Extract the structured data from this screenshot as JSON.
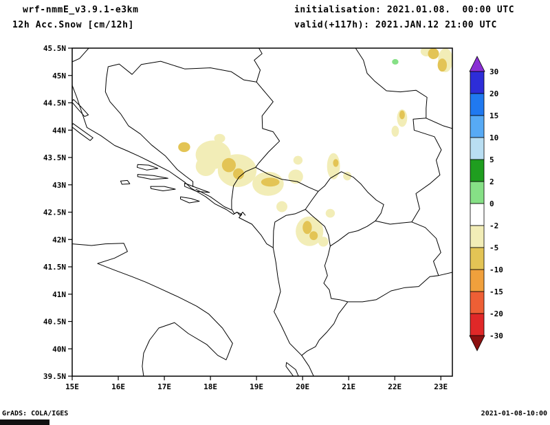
{
  "header": {
    "model": "wrf-nmmE_v3.9.1-e3km",
    "product": "12h Acc.Snow [cm/12h]",
    "init": "initialisation: 2021.01.08.  00:00 UTC",
    "valid": "valid(+117h): 2021.JAN.12 21:00 UTC"
  },
  "footer": {
    "left": "GrADS: COLA/IGES",
    "right": "2021-01-08-10:00"
  },
  "chart_data": {
    "type": "map",
    "variable": "12h Acc.Snow",
    "units": "cm/12h",
    "model": "wrf-nmmE_v3.9.1-e3km",
    "lon_range": [
      15,
      23.25
    ],
    "lat_range": [
      39.5,
      45.5
    ],
    "x_ticks": [
      {
        "v": 15,
        "label": "15E"
      },
      {
        "v": 16,
        "label": "16E"
      },
      {
        "v": 17,
        "label": "17E"
      },
      {
        "v": 18,
        "label": "18E"
      },
      {
        "v": 19,
        "label": "19E"
      },
      {
        "v": 20,
        "label": "20E"
      },
      {
        "v": 21,
        "label": "21E"
      },
      {
        "v": 22,
        "label": "22E"
      },
      {
        "v": 23,
        "label": "23E"
      }
    ],
    "y_ticks": [
      {
        "v": 45.5,
        "label": "45.5N"
      },
      {
        "v": 45,
        "label": "45N"
      },
      {
        "v": 44.5,
        "label": "44.5N"
      },
      {
        "v": 44,
        "label": "44N"
      },
      {
        "v": 43.5,
        "label": "43.5N"
      },
      {
        "v": 43,
        "label": "43N"
      },
      {
        "v": 42.5,
        "label": "42.5N"
      },
      {
        "v": 42,
        "label": "42N"
      },
      {
        "v": 41.5,
        "label": "41.5N"
      },
      {
        "v": 41,
        "label": "41N"
      },
      {
        "v": 40.5,
        "label": "40.5N"
      },
      {
        "v": 40,
        "label": "40N"
      },
      {
        "v": 39.5,
        "label": "39.5N"
      }
    ],
    "colorbar": {
      "labels": [
        "30",
        "20",
        "15",
        "10",
        "5",
        "2",
        "0",
        "-2",
        "-5",
        "-10",
        "-15",
        "-20",
        "-30"
      ],
      "segment_colors": [
        "#2d2dd8",
        "#2079f0",
        "#57aaf5",
        "#b9def2",
        "#1f9e1f",
        "#86e086",
        "#ffffff",
        "#f2edb7",
        "#e3c455",
        "#f0a03c",
        "#ee5f35",
        "#e02828"
      ],
      "arrow_top": "#8a2fd4",
      "arrow_bottom": "#8c1010"
    },
    "palette": {
      "pale": "#f2edb7",
      "gold": "#e3c455",
      "green": "#86e086"
    },
    "patches": [
      {
        "lon": 18.06,
        "lat": 43.55,
        "rx": 0.38,
        "ry": 0.26,
        "c": "pale"
      },
      {
        "lon": 18.58,
        "lat": 43.26,
        "rx": 0.42,
        "ry": 0.3,
        "c": "pale"
      },
      {
        "lon": 17.9,
        "lat": 43.34,
        "rx": 0.22,
        "ry": 0.18,
        "c": "pale"
      },
      {
        "lon": 19.25,
        "lat": 43.02,
        "rx": 0.34,
        "ry": 0.22,
        "c": "pale"
      },
      {
        "lon": 19.85,
        "lat": 43.15,
        "rx": 0.16,
        "ry": 0.13,
        "c": "pale"
      },
      {
        "lon": 19.9,
        "lat": 43.45,
        "rx": 0.1,
        "ry": 0.08,
        "c": "pale"
      },
      {
        "lon": 18.2,
        "lat": 43.85,
        "rx": 0.12,
        "ry": 0.08,
        "c": "pale"
      },
      {
        "lon": 20.67,
        "lat": 43.34,
        "rx": 0.14,
        "ry": 0.24,
        "c": "pale"
      },
      {
        "lon": 20.15,
        "lat": 42.15,
        "rx": 0.3,
        "ry": 0.27,
        "c": "pale"
      },
      {
        "lon": 20.45,
        "lat": 41.96,
        "rx": 0.11,
        "ry": 0.09,
        "c": "pale"
      },
      {
        "lon": 19.55,
        "lat": 42.6,
        "rx": 0.12,
        "ry": 0.1,
        "c": "pale"
      },
      {
        "lon": 20.6,
        "lat": 42.48,
        "rx": 0.1,
        "ry": 0.08,
        "c": "pale"
      },
      {
        "lon": 20.97,
        "lat": 43.16,
        "rx": 0.09,
        "ry": 0.08,
        "c": "pale"
      },
      {
        "lon": 23.1,
        "lat": 45.28,
        "rx": 0.16,
        "ry": 0.22,
        "c": "pale"
      },
      {
        "lon": 22.69,
        "lat": 45.44,
        "rx": 0.13,
        "ry": 0.09,
        "c": "pale"
      },
      {
        "lon": 22.16,
        "lat": 44.22,
        "rx": 0.11,
        "ry": 0.16,
        "c": "pale"
      },
      {
        "lon": 22.01,
        "lat": 43.98,
        "rx": 0.08,
        "ry": 0.1,
        "c": "pale"
      },
      {
        "lon": 17.43,
        "lat": 43.69,
        "rx": 0.13,
        "ry": 0.09,
        "c": "gold"
      },
      {
        "lon": 18.4,
        "lat": 43.36,
        "rx": 0.15,
        "ry": 0.13,
        "c": "gold"
      },
      {
        "lon": 18.61,
        "lat": 43.2,
        "rx": 0.12,
        "ry": 0.1,
        "c": "gold"
      },
      {
        "lon": 19.3,
        "lat": 43.05,
        "rx": 0.2,
        "ry": 0.08,
        "c": "gold"
      },
      {
        "lon": 20.72,
        "lat": 43.4,
        "rx": 0.06,
        "ry": 0.07,
        "c": "gold"
      },
      {
        "lon": 20.1,
        "lat": 42.22,
        "rx": 0.1,
        "ry": 0.12,
        "c": "gold"
      },
      {
        "lon": 20.24,
        "lat": 42.07,
        "rx": 0.09,
        "ry": 0.08,
        "c": "gold"
      },
      {
        "lon": 22.84,
        "lat": 45.4,
        "rx": 0.12,
        "ry": 0.1,
        "c": "gold"
      },
      {
        "lon": 23.03,
        "lat": 45.19,
        "rx": 0.1,
        "ry": 0.12,
        "c": "gold"
      },
      {
        "lon": 22.16,
        "lat": 44.28,
        "rx": 0.06,
        "ry": 0.08,
        "c": "gold"
      },
      {
        "lon": 22.01,
        "lat": 45.25,
        "rx": 0.07,
        "ry": 0.05,
        "c": "green"
      }
    ]
  }
}
